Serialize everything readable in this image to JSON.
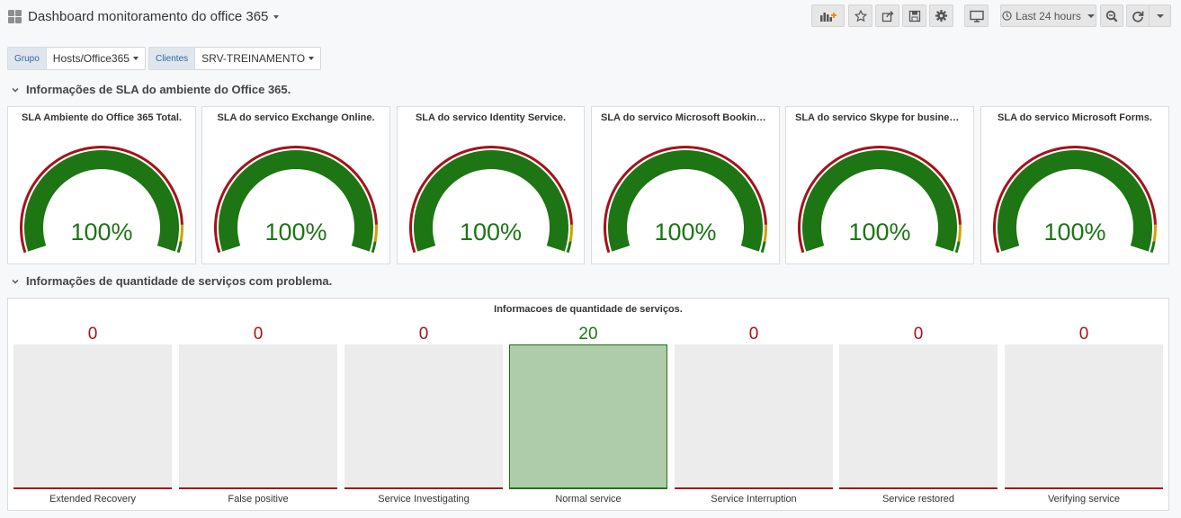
{
  "header": {
    "title": "Dashboard monitoramento do office 365",
    "time_range": "Last 24 hours"
  },
  "variables": [
    {
      "label": "Grupo",
      "value": "Hosts/Office365"
    },
    {
      "label": "Clientes",
      "value": "SRV-TREINAMENTO"
    }
  ],
  "rows": [
    {
      "title": "Informações de SLA do ambiente do Office 365."
    },
    {
      "title": "Informações de quantidade de serviços com problema."
    }
  ],
  "gauges": [
    {
      "title": "SLA Ambiente do Office 365 Total.",
      "value": "100%",
      "level": 1.0
    },
    {
      "title": "SLA do servico Exchange Online.",
      "value": "100%",
      "level": 1.0
    },
    {
      "title": "SLA do servico Identity Service.",
      "value": "100%",
      "level": 1.0
    },
    {
      "title": "SLA do servico Microsoft Bookings.",
      "value": "100%",
      "level": 1.0
    },
    {
      "title": "SLA do servico Skype for business Online.",
      "value": "100%",
      "level": 1.0
    },
    {
      "title": "SLA do servico Microsoft Forms.",
      "value": "100%",
      "level": 1.0
    }
  ],
  "status_panel": {
    "title": "Informacoes de quantidade de serviços.",
    "items": [
      {
        "label": "Extended Recovery",
        "value": "0"
      },
      {
        "label": "False positive",
        "value": "0"
      },
      {
        "label": "Service Investigating",
        "value": "0"
      },
      {
        "label": "Normal service",
        "value": "20"
      },
      {
        "label": "Service Interruption",
        "value": "0"
      },
      {
        "label": "Service restored",
        "value": "0"
      },
      {
        "label": "Verifying service",
        "value": "0"
      }
    ]
  },
  "colors": {
    "ok": "#1d7514",
    "warning": "#cfa100",
    "critical": "#a3131b",
    "ok_fill": "#aeccaa",
    "empty_fill": "#ececec"
  },
  "icons": [
    "grid-icon",
    "add-panel-icon",
    "star-icon",
    "share-icon",
    "save-icon",
    "gear-icon",
    "monitor-icon",
    "clock-icon",
    "zoom-out-icon",
    "refresh-icon",
    "chevron-down-icon"
  ]
}
